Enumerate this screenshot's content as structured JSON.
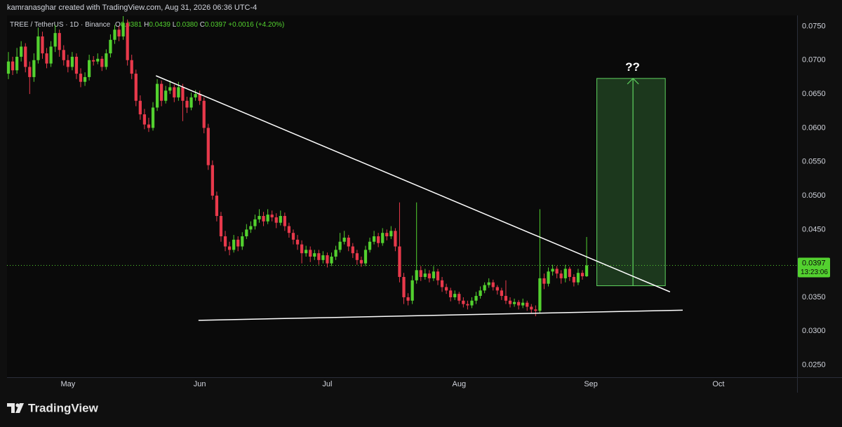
{
  "chart_data": {
    "type": "candlestick",
    "attribution": "kamranasghar created with TradingView.com, Aug 31, 2026 06:36 UTC-4",
    "symbol": "TREE / TetherUS · 1D · Binance",
    "ohlc": [
      {
        "label": "O",
        "value": "0.0381"
      },
      {
        "label": "H",
        "value": "0.0439"
      },
      {
        "label": "L",
        "value": "0.0380"
      },
      {
        "label": "C",
        "value": "0.0397"
      }
    ],
    "change": "+0.0016 (+4.20%)",
    "brand": "TradingView",
    "up_color": "#53d12f",
    "down_color": "#e8394b",
    "candles": [
      [
        0.068,
        0.0712,
        0.0672,
        0.0698
      ],
      [
        0.0698,
        0.0705,
        0.0678,
        0.0685
      ],
      [
        0.0685,
        0.0718,
        0.068,
        0.0705
      ],
      [
        0.0705,
        0.0728,
        0.0698,
        0.072
      ],
      [
        0.072,
        0.0725,
        0.0682,
        0.069
      ],
      [
        0.069,
        0.0698,
        0.065,
        0.0675
      ],
      [
        0.0675,
        0.071,
        0.0668,
        0.07
      ],
      [
        0.07,
        0.0748,
        0.0695,
        0.0735
      ],
      [
        0.0735,
        0.0742,
        0.0702,
        0.071
      ],
      [
        0.071,
        0.0718,
        0.0688,
        0.0695
      ],
      [
        0.0695,
        0.0728,
        0.069,
        0.072
      ],
      [
        0.072,
        0.0752,
        0.0712,
        0.074
      ],
      [
        0.074,
        0.0745,
        0.0705,
        0.0715
      ],
      [
        0.0715,
        0.0722,
        0.0692,
        0.07
      ],
      [
        0.07,
        0.0708,
        0.0682,
        0.069
      ],
      [
        0.069,
        0.0712,
        0.0685,
        0.0705
      ],
      [
        0.0705,
        0.071,
        0.0672,
        0.068
      ],
      [
        0.068,
        0.0688,
        0.066,
        0.0668
      ],
      [
        0.0668,
        0.0682,
        0.0662,
        0.0675
      ],
      [
        0.0675,
        0.0708,
        0.067,
        0.07
      ],
      [
        0.07,
        0.0706,
        0.0692,
        0.0698
      ],
      [
        0.0698,
        0.071,
        0.0694,
        0.0702
      ],
      [
        0.0702,
        0.0706,
        0.0684,
        0.069
      ],
      [
        0.069,
        0.0716,
        0.0686,
        0.071
      ],
      [
        0.071,
        0.0738,
        0.0704,
        0.073
      ],
      [
        0.073,
        0.0752,
        0.0724,
        0.0745
      ],
      [
        0.0745,
        0.075,
        0.0728,
        0.0735
      ],
      [
        0.0735,
        0.0765,
        0.073,
        0.0755
      ],
      [
        0.0755,
        0.076,
        0.0692,
        0.07
      ],
      [
        0.07,
        0.0708,
        0.0672,
        0.068
      ],
      [
        0.068,
        0.0686,
        0.0632,
        0.064
      ],
      [
        0.064,
        0.0648,
        0.0612,
        0.062
      ],
      [
        0.062,
        0.0628,
        0.0598,
        0.0605
      ],
      [
        0.0605,
        0.0615,
        0.0594,
        0.06
      ],
      [
        0.06,
        0.0638,
        0.0596,
        0.063
      ],
      [
        0.063,
        0.0672,
        0.0625,
        0.0665
      ],
      [
        0.0665,
        0.067,
        0.0632,
        0.064
      ],
      [
        0.064,
        0.0662,
        0.0636,
        0.0655
      ],
      [
        0.0655,
        0.067,
        0.065,
        0.066
      ],
      [
        0.066,
        0.0664,
        0.0638,
        0.0645
      ],
      [
        0.0645,
        0.0668,
        0.064,
        0.066
      ],
      [
        0.066,
        0.0665,
        0.061,
        0.064
      ],
      [
        0.064,
        0.0646,
        0.0622,
        0.063
      ],
      [
        0.063,
        0.0652,
        0.0626,
        0.0645
      ],
      [
        0.0645,
        0.0656,
        0.064,
        0.065
      ],
      [
        0.065,
        0.0655,
        0.0634,
        0.064
      ],
      [
        0.064,
        0.0645,
        0.0592,
        0.06
      ],
      [
        0.06,
        0.0606,
        0.0538,
        0.0545
      ],
      [
        0.0545,
        0.0552,
        0.0494,
        0.05
      ],
      [
        0.05,
        0.0506,
        0.0462,
        0.047
      ],
      [
        0.047,
        0.0476,
        0.0432,
        0.044
      ],
      [
        0.044,
        0.0448,
        0.0418,
        0.0425
      ],
      [
        0.0425,
        0.0432,
        0.0412,
        0.042
      ],
      [
        0.042,
        0.0442,
        0.0416,
        0.0435
      ],
      [
        0.0435,
        0.044,
        0.0418,
        0.0425
      ],
      [
        0.0425,
        0.0446,
        0.042,
        0.044
      ],
      [
        0.044,
        0.0458,
        0.0436,
        0.045
      ],
      [
        0.045,
        0.0462,
        0.0445,
        0.0455
      ],
      [
        0.0455,
        0.0472,
        0.045,
        0.0465
      ],
      [
        0.0465,
        0.048,
        0.046,
        0.047
      ],
      [
        0.047,
        0.0476,
        0.0455,
        0.0462
      ],
      [
        0.0462,
        0.048,
        0.0458,
        0.0472
      ],
      [
        0.0472,
        0.0478,
        0.0462,
        0.0468
      ],
      [
        0.0468,
        0.0474,
        0.0452,
        0.046
      ],
      [
        0.046,
        0.0478,
        0.0456,
        0.047
      ],
      [
        0.047,
        0.0475,
        0.0448,
        0.0455
      ],
      [
        0.0455,
        0.046,
        0.0438,
        0.0445
      ],
      [
        0.0445,
        0.045,
        0.0428,
        0.0435
      ],
      [
        0.0435,
        0.0442,
        0.042,
        0.0428
      ],
      [
        0.0428,
        0.0434,
        0.04,
        0.0415
      ],
      [
        0.0415,
        0.0426,
        0.041,
        0.042
      ],
      [
        0.042,
        0.0425,
        0.0402,
        0.041
      ],
      [
        0.041,
        0.042,
        0.0405,
        0.0415
      ],
      [
        0.0415,
        0.042,
        0.0398,
        0.0405
      ],
      [
        0.0405,
        0.0418,
        0.04,
        0.0412
      ],
      [
        0.0412,
        0.0416,
        0.0394,
        0.04
      ],
      [
        0.04,
        0.0416,
        0.0396,
        0.041
      ],
      [
        0.041,
        0.0426,
        0.0405,
        0.042
      ],
      [
        0.042,
        0.0445,
        0.0416,
        0.0432
      ],
      [
        0.0432,
        0.0448,
        0.0428,
        0.0438
      ],
      [
        0.0438,
        0.0442,
        0.0418,
        0.0425
      ],
      [
        0.0425,
        0.043,
        0.0408,
        0.0415
      ],
      [
        0.0415,
        0.042,
        0.0398,
        0.0405
      ],
      [
        0.0405,
        0.041,
        0.0395,
        0.04
      ],
      [
        0.04,
        0.0426,
        0.0396,
        0.042
      ],
      [
        0.042,
        0.0438,
        0.0416,
        0.0432
      ],
      [
        0.0432,
        0.0448,
        0.0428,
        0.044
      ],
      [
        0.044,
        0.0445,
        0.0424,
        0.043
      ],
      [
        0.043,
        0.0452,
        0.0426,
        0.0445
      ],
      [
        0.0445,
        0.045,
        0.0434,
        0.044
      ],
      [
        0.044,
        0.0455,
        0.0436,
        0.0448
      ],
      [
        0.0448,
        0.0452,
        0.0418,
        0.0425
      ],
      [
        0.0425,
        0.049,
        0.0372,
        0.038
      ],
      [
        0.038,
        0.0386,
        0.034,
        0.035
      ],
      [
        0.035,
        0.0356,
        0.0338,
        0.0345
      ],
      [
        0.0345,
        0.0382,
        0.034,
        0.0375
      ],
      [
        0.0375,
        0.049,
        0.037,
        0.039
      ],
      [
        0.039,
        0.0396,
        0.0374,
        0.038
      ],
      [
        0.038,
        0.0392,
        0.0376,
        0.0385
      ],
      [
        0.0385,
        0.039,
        0.0372,
        0.0378
      ],
      [
        0.0378,
        0.0396,
        0.0374,
        0.0388
      ],
      [
        0.0388,
        0.0392,
        0.0368,
        0.0375
      ],
      [
        0.0375,
        0.038,
        0.0358,
        0.0365
      ],
      [
        0.0365,
        0.037,
        0.0355,
        0.036
      ],
      [
        0.036,
        0.0364,
        0.0344,
        0.035
      ],
      [
        0.035,
        0.036,
        0.0346,
        0.0355
      ],
      [
        0.0355,
        0.0358,
        0.034,
        0.0345
      ],
      [
        0.0345,
        0.035,
        0.0335,
        0.034
      ],
      [
        0.034,
        0.0345,
        0.0332,
        0.0338
      ],
      [
        0.0338,
        0.035,
        0.0334,
        0.0345
      ],
      [
        0.0345,
        0.0358,
        0.034,
        0.0352
      ],
      [
        0.0352,
        0.0366,
        0.0348,
        0.036
      ],
      [
        0.036,
        0.0372,
        0.0356,
        0.0368
      ],
      [
        0.0368,
        0.0378,
        0.0364,
        0.0372
      ],
      [
        0.0372,
        0.0376,
        0.036,
        0.0365
      ],
      [
        0.0365,
        0.0368,
        0.0354,
        0.036
      ],
      [
        0.036,
        0.0364,
        0.0346,
        0.0352
      ],
      [
        0.0352,
        0.0375,
        0.034,
        0.0345
      ],
      [
        0.0345,
        0.035,
        0.0335,
        0.034
      ],
      [
        0.034,
        0.0348,
        0.0336,
        0.0343
      ],
      [
        0.0343,
        0.0346,
        0.0332,
        0.0338
      ],
      [
        0.0338,
        0.0348,
        0.0334,
        0.0342
      ],
      [
        0.0342,
        0.0345,
        0.033,
        0.0336
      ],
      [
        0.0336,
        0.034,
        0.0326,
        0.0332
      ],
      [
        0.0332,
        0.0338,
        0.0322,
        0.033
      ],
      [
        0.033,
        0.048,
        0.0326,
        0.0378
      ],
      [
        0.0378,
        0.0385,
        0.0362,
        0.037
      ],
      [
        0.037,
        0.0394,
        0.0366,
        0.0388
      ],
      [
        0.0388,
        0.0398,
        0.0382,
        0.0392
      ],
      [
        0.0392,
        0.0396,
        0.0378,
        0.0385
      ],
      [
        0.0385,
        0.039,
        0.037,
        0.0378
      ],
      [
        0.0378,
        0.0398,
        0.0372,
        0.0392
      ],
      [
        0.0392,
        0.0395,
        0.0374,
        0.038
      ],
      [
        0.038,
        0.0384,
        0.0366,
        0.0372
      ],
      [
        0.0372,
        0.0392,
        0.0368,
        0.0386
      ],
      [
        0.0386,
        0.039,
        0.0376,
        0.0381
      ],
      [
        0.0381,
        0.0439,
        0.038,
        0.0397
      ]
    ],
    "xlim": [
      -0.33,
      185.5
    ],
    "xticks": [
      {
        "value": 14,
        "label": "May"
      },
      {
        "value": 45,
        "label": "Jun"
      },
      {
        "value": 75,
        "label": "Jul"
      },
      {
        "value": 106,
        "label": "Aug"
      },
      {
        "value": 137,
        "label": "Sep"
      },
      {
        "value": 167,
        "label": "Oct"
      }
    ],
    "ylim": [
      0.0232,
      0.0766
    ],
    "yticks": [
      {
        "value": 0.025,
        "label": "0.0250"
      },
      {
        "value": 0.03,
        "label": "0.0300"
      },
      {
        "value": 0.035,
        "label": "0.0350"
      },
      {
        "value": 0.04,
        "label": "0.0400"
      },
      {
        "value": 0.045,
        "label": "0.0450"
      },
      {
        "value": 0.05,
        "label": "0.0500"
      },
      {
        "value": 0.055,
        "label": "0.0550"
      },
      {
        "value": 0.06,
        "label": "0.0600"
      },
      {
        "value": 0.065,
        "label": "0.0650"
      },
      {
        "value": 0.07,
        "label": "0.0700"
      },
      {
        "value": 0.075,
        "label": "0.0750"
      }
    ],
    "grid": false,
    "last_price": {
      "value": 0.0397,
      "label": "0.0397",
      "countdown": "13:23:06"
    },
    "trendlines": [
      {
        "x": [
          34.7,
          155.6
        ],
        "y": [
          0.0677,
          0.0358
        ]
      },
      {
        "x": [
          44.7,
          158.6
        ],
        "y": [
          0.0316,
          0.0331
        ]
      }
    ],
    "target_box": {
      "x": [
        138.4,
        154.5
      ],
      "y": [
        0.0367,
        0.0673
      ],
      "arrow_x": 146.9
    },
    "annotation": {
      "text": "??",
      "x": 146.8,
      "y": 0.0689
    }
  }
}
